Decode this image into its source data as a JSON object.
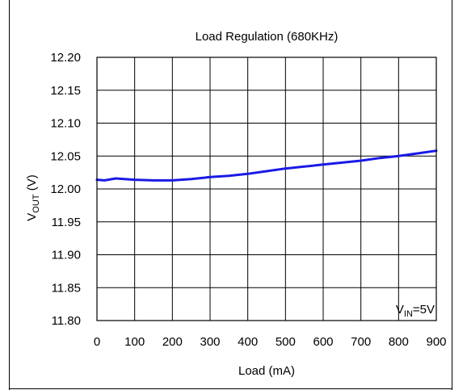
{
  "chart_data": {
    "type": "line",
    "title": "Load Regulation (680KHz)",
    "xlabel": "Load (mA)",
    "ylabel": {
      "main": "V",
      "sub": "OUT",
      "suffix": " (V)"
    },
    "annotation": {
      "main": "V",
      "sub": "IN",
      "suffix": "=5V"
    },
    "xlim": [
      0,
      900
    ],
    "ylim": [
      11.8,
      12.2
    ],
    "x_ticks": [
      "0",
      "100",
      "200",
      "300",
      "400",
      "500",
      "600",
      "700",
      "800",
      "900"
    ],
    "y_ticks": [
      "12.20",
      "12.15",
      "12.10",
      "12.05",
      "12.00",
      "11.95",
      "11.90",
      "11.85",
      "11.80"
    ],
    "grid": true,
    "series": [
      {
        "color": "#1a1ae6",
        "x": [
          0,
          20,
          50,
          100,
          150,
          200,
          250,
          300,
          350,
          400,
          450,
          500,
          550,
          600,
          650,
          700,
          750,
          800,
          850,
          900
        ],
        "y": [
          12.014,
          12.013,
          12.016,
          12.014,
          12.013,
          12.013,
          12.015,
          12.018,
          12.02,
          12.023,
          12.027,
          12.031,
          12.034,
          12.037,
          12.04,
          12.043,
          12.047,
          12.05,
          12.054,
          12.058
        ]
      }
    ]
  }
}
